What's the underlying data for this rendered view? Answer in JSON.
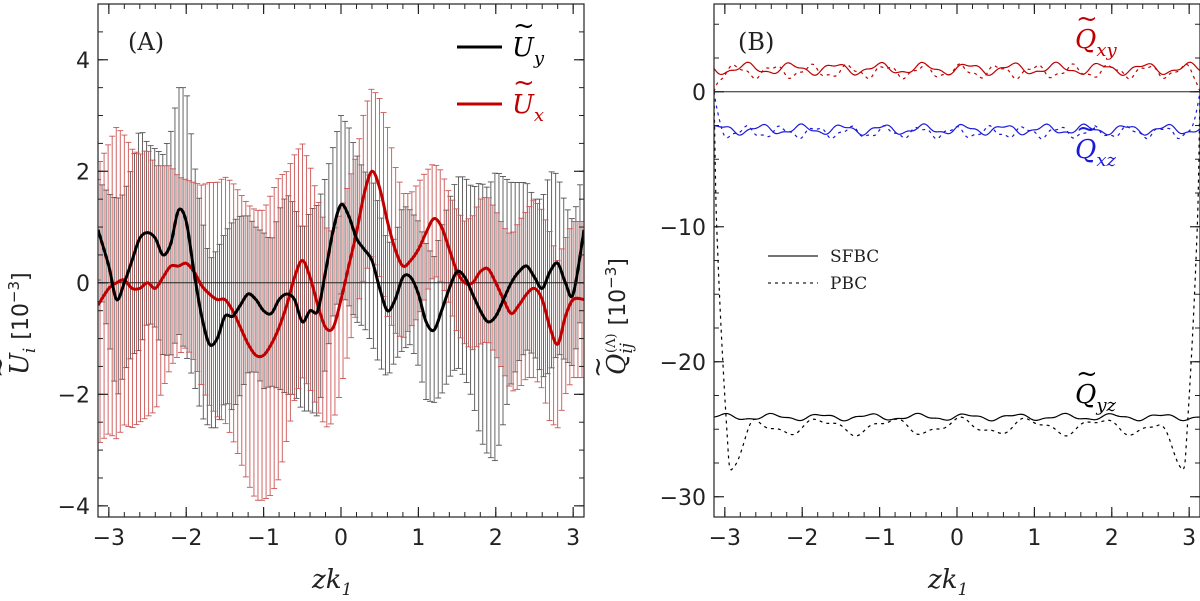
{
  "chart_data": [
    {
      "id": "A",
      "type": "line",
      "panel_label": "(A)",
      "xlabel": "zk",
      "xlabel_sub": "1",
      "ylabel": "U",
      "ylabel_sub": "i",
      "ylabel_unit": "[10",
      "ylabel_unit_exp": "−3",
      "ylabel_unit_close": "]",
      "xlim": [
        -3.14,
        3.14
      ],
      "ylim": [
        -4.2,
        5.0
      ],
      "xticks": [
        -3,
        -2,
        -1,
        0,
        1,
        2,
        3
      ],
      "xtick_labels": [
        "−3",
        "−2",
        "−1",
        "0",
        "1",
        "2",
        "3"
      ],
      "yticks": [
        -4,
        -2,
        0,
        2,
        4
      ],
      "ytick_labels": [
        "−4",
        "−2",
        "0",
        "2",
        "4"
      ],
      "zero_line": true,
      "legend": [
        {
          "name": "U",
          "sub": "y",
          "color": "#000000"
        },
        {
          "name": "U",
          "sub": "x",
          "color": "#c00000"
        }
      ],
      "series": [
        {
          "name": "U_y",
          "color": "#000000",
          "x": [
            -3.14,
            -3.0,
            -2.9,
            -2.8,
            -2.7,
            -2.6,
            -2.5,
            -2.4,
            -2.3,
            -2.2,
            -2.1,
            -2.0,
            -1.9,
            -1.8,
            -1.7,
            -1.6,
            -1.5,
            -1.4,
            -1.3,
            -1.2,
            -1.1,
            -1.0,
            -0.9,
            -0.8,
            -0.7,
            -0.6,
            -0.5,
            -0.4,
            -0.3,
            -0.2,
            -0.1,
            0.0,
            0.1,
            0.2,
            0.3,
            0.4,
            0.5,
            0.6,
            0.7,
            0.8,
            0.9,
            1.0,
            1.1,
            1.2,
            1.3,
            1.4,
            1.5,
            1.6,
            1.7,
            1.8,
            1.9,
            2.0,
            2.1,
            2.2,
            2.3,
            2.4,
            2.5,
            2.6,
            2.7,
            2.8,
            2.9,
            3.0,
            3.14
          ],
          "values": [
            0.95,
            0.3,
            -0.3,
            0.0,
            0.4,
            0.8,
            0.9,
            0.8,
            0.5,
            0.7,
            1.3,
            1.1,
            0.2,
            -0.6,
            -1.1,
            -1.0,
            -0.6,
            -0.6,
            -0.4,
            -0.2,
            -0.3,
            -0.5,
            -0.55,
            -0.3,
            -0.2,
            -0.3,
            -0.7,
            -0.5,
            -0.5,
            0.2,
            0.95,
            1.4,
            1.2,
            0.8,
            0.6,
            0.4,
            -0.1,
            -0.5,
            -0.3,
            0.1,
            0.1,
            -0.2,
            -0.7,
            -0.85,
            -0.5,
            -0.1,
            0.2,
            0.1,
            -0.2,
            -0.5,
            -0.7,
            -0.6,
            -0.3,
            0.0,
            0.2,
            0.3,
            0.1,
            -0.1,
            0.2,
            0.35,
            0.0,
            -0.2,
            0.95
          ],
          "errors": [
            0.9,
            1.3,
            1.8,
            1.6,
            1.7,
            2.0,
            1.6,
            1.6,
            1.8,
            2.0,
            2.2,
            2.4,
            2.0,
            1.8,
            1.5,
            1.6,
            1.5,
            1.7,
            1.6,
            1.4,
            1.3,
            1.4,
            1.3,
            1.6,
            1.8,
            1.7,
            1.6,
            1.8,
            1.9,
            1.7,
            1.5,
            1.6,
            1.6,
            1.5,
            1.4,
            1.5,
            1.4,
            1.2,
            1.1,
            1.3,
            1.2,
            1.3,
            1.4,
            1.3,
            1.5,
            1.6,
            1.7,
            1.8,
            1.9,
            2.3,
            2.4,
            2.6,
            2.2,
            1.8,
            1.6,
            1.5,
            1.4,
            1.6,
            1.8,
            1.6,
            1.4,
            1.3,
            1.2
          ]
        },
        {
          "name": "U_x",
          "color": "#c00000",
          "x": [
            -3.14,
            -3.0,
            -2.9,
            -2.8,
            -2.7,
            -2.6,
            -2.5,
            -2.4,
            -2.3,
            -2.2,
            -2.1,
            -2.0,
            -1.9,
            -1.8,
            -1.7,
            -1.6,
            -1.5,
            -1.4,
            -1.3,
            -1.2,
            -1.1,
            -1.0,
            -0.9,
            -0.8,
            -0.7,
            -0.6,
            -0.5,
            -0.4,
            -0.3,
            -0.2,
            -0.1,
            0.0,
            0.1,
            0.2,
            0.3,
            0.4,
            0.5,
            0.6,
            0.7,
            0.8,
            0.9,
            1.0,
            1.1,
            1.2,
            1.3,
            1.4,
            1.5,
            1.6,
            1.7,
            1.8,
            1.9,
            2.0,
            2.1,
            2.2,
            2.3,
            2.4,
            2.5,
            2.6,
            2.7,
            2.8,
            2.9,
            3.0,
            3.14
          ],
          "values": [
            -0.4,
            -0.1,
            0.0,
            0.05,
            -0.1,
            -0.1,
            0.0,
            -0.1,
            0.1,
            0.3,
            0.3,
            0.35,
            0.2,
            -0.05,
            -0.2,
            -0.3,
            -0.3,
            -0.5,
            -0.8,
            -1.1,
            -1.3,
            -1.3,
            -1.1,
            -0.8,
            -0.4,
            0.1,
            0.4,
            0.1,
            -0.4,
            -0.8,
            -0.8,
            -0.3,
            0.3,
            0.9,
            1.6,
            2.0,
            1.7,
            1.1,
            0.6,
            0.3,
            0.4,
            0.6,
            0.9,
            1.15,
            1.0,
            0.6,
            0.2,
            0.0,
            0.0,
            0.2,
            0.25,
            0.0,
            -0.3,
            -0.55,
            -0.4,
            -0.2,
            -0.1,
            -0.3,
            -0.8,
            -1.1,
            -0.6,
            -0.3,
            -0.3
          ],
          "errors": [
            2.5,
            2.6,
            2.8,
            2.6,
            2.5,
            2.4,
            2.4,
            2.2,
            2.0,
            1.8,
            1.6,
            1.5,
            1.6,
            1.8,
            2.0,
            2.1,
            2.2,
            2.3,
            2.4,
            2.5,
            2.6,
            2.6,
            2.7,
            2.7,
            2.4,
            2.2,
            2.1,
            2.0,
            1.9,
            1.8,
            1.7,
            1.6,
            1.5,
            1.4,
            1.5,
            1.5,
            1.6,
            1.7,
            1.5,
            1.3,
            1.2,
            1.2,
            1.1,
            1.0,
            1.0,
            1.0,
            1.1,
            1.1,
            1.2,
            1.3,
            1.3,
            1.3,
            1.3,
            1.4,
            1.5,
            1.5,
            1.6,
            1.6,
            1.7,
            1.5,
            1.4,
            1.4,
            1.4
          ]
        }
      ]
    },
    {
      "id": "B",
      "type": "line",
      "panel_label": "(B)",
      "xlabel": "zk",
      "xlabel_sub": "1",
      "ylabel": "Q",
      "ylabel_sub": "ij",
      "ylabel_sup": "(Λ)",
      "ylabel_unit": "[10",
      "ylabel_unit_exp": "−3",
      "ylabel_unit_close": "]",
      "xlim": [
        -3.14,
        3.14
      ],
      "ylim": [
        -31.5,
        6.5
      ],
      "xticks": [
        -3,
        -2,
        -1,
        0,
        1,
        2,
        3
      ],
      "xtick_labels": [
        "−3",
        "−2",
        "−1",
        "0",
        "1",
        "2",
        "3"
      ],
      "yticks": [
        -30,
        -20,
        -10,
        0
      ],
      "ytick_labels": [
        "−30",
        "−20",
        "−10",
        "0"
      ],
      "zero_line": true,
      "legend": [
        {
          "label": "SFBC",
          "style": "solid"
        },
        {
          "label": "PBC",
          "style": "dotted"
        }
      ],
      "annotations": [
        {
          "name": "Q",
          "sub": "xy",
          "color": "#c00000"
        },
        {
          "name": "Q",
          "sub": "xz",
          "color": "#1a1adb"
        },
        {
          "name": "Q",
          "sub": "yz",
          "color": "#000000"
        }
      ],
      "series": [
        {
          "name": "Q_xy SFBC",
          "color": "#c00000",
          "style": "solid",
          "mean": 1.7,
          "amp": 0.35,
          "freq": 11,
          "phase": 0.0
        },
        {
          "name": "Q_xy PBC",
          "color": "#c00000",
          "style": "dotted",
          "mean": 1.5,
          "amp": 0.4,
          "freq": 13,
          "phase": 1.0,
          "edge_value": 0.0
        },
        {
          "name": "Q_xz SFBC",
          "color": "#1a1adb",
          "style": "solid",
          "mean": -2.8,
          "amp": 0.3,
          "freq": 12,
          "phase": 0.5
        },
        {
          "name": "Q_xz PBC",
          "color": "#1a1adb",
          "style": "dotted",
          "mean": -3.0,
          "amp": 0.35,
          "freq": 14,
          "phase": 2.0,
          "edge_value": 0.0
        },
        {
          "name": "Q_yz SFBC",
          "color": "#000000",
          "style": "solid",
          "mean": -24.1,
          "amp": 0.2,
          "freq": 10,
          "phase": 0.3
        },
        {
          "name": "Q_yz PBC",
          "color": "#000000",
          "style": "dotted",
          "mean": -24.8,
          "amp": 0.5,
          "freq": 7,
          "phase": 1.3,
          "edge_value": 0.0,
          "dip_value": -28.0
        }
      ]
    }
  ]
}
